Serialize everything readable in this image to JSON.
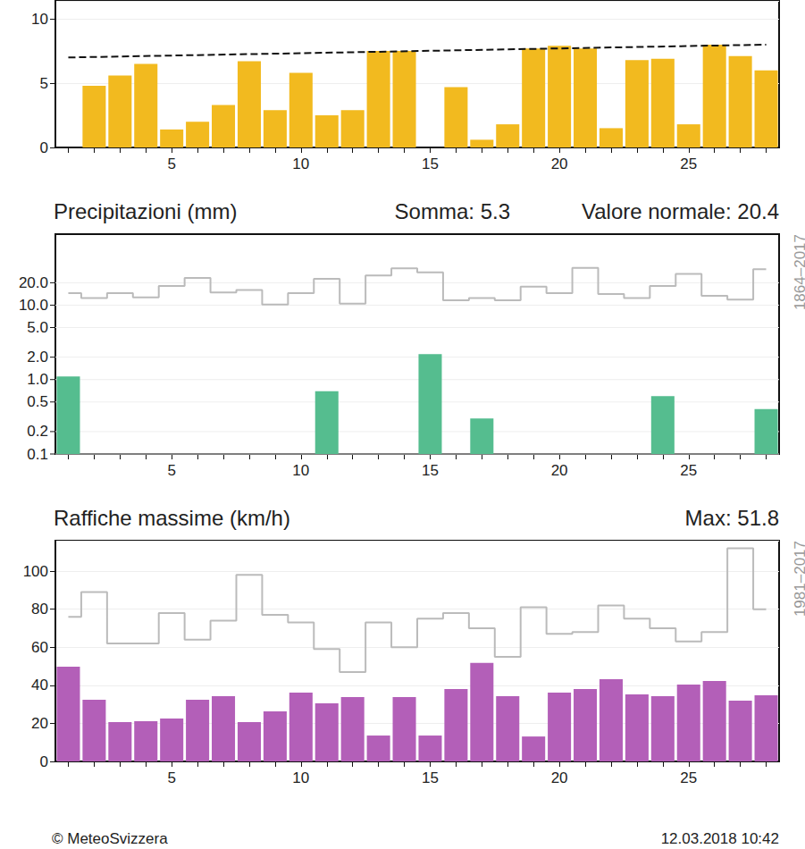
{
  "chart_data": [
    {
      "type": "bar",
      "x": [
        1,
        2,
        3,
        4,
        5,
        6,
        7,
        8,
        9,
        10,
        11,
        12,
        13,
        14,
        15,
        16,
        17,
        18,
        19,
        20,
        21,
        22,
        23,
        24,
        25,
        26,
        27,
        28
      ],
      "series": [
        {
          "type": "bar",
          "color": "#F2BA1F",
          "values": [
            0,
            4.8,
            5.6,
            6.5,
            1.4,
            2.0,
            3.3,
            6.7,
            2.9,
            5.8,
            2.5,
            2.9,
            7.5,
            7.5,
            0,
            4.7,
            0.6,
            1.8,
            7.7,
            7.9,
            7.7,
            1.5,
            6.8,
            6.9,
            1.8,
            8.0,
            7.1,
            6.0
          ]
        },
        {
          "type": "line",
          "color": "#111111",
          "line_style": "dashed",
          "x": [
            1,
            28
          ],
          "values": [
            7.0,
            8.0
          ]
        }
      ],
      "xlim": [
        0.5,
        28.5
      ],
      "xticks": [
        5,
        10,
        15,
        20,
        25
      ],
      "ylim": [
        0,
        11.4
      ],
      "yticks": [
        0,
        5,
        10
      ],
      "grid": true
    },
    {
      "type": "bar",
      "title": "Precipitazioni (mm)",
      "annotations": [
        "Somma: 5.3",
        "Valore normale: 20.4"
      ],
      "x": [
        1,
        2,
        3,
        4,
        5,
        6,
        7,
        8,
        9,
        10,
        11,
        12,
        13,
        14,
        15,
        16,
        17,
        18,
        19,
        20,
        21,
        22,
        23,
        24,
        25,
        26,
        27,
        28
      ],
      "series": [
        {
          "type": "bar",
          "color": "#55BD8F",
          "values": [
            1.1,
            null,
            null,
            null,
            null,
            null,
            null,
            null,
            null,
            null,
            0.7,
            null,
            null,
            null,
            2.2,
            null,
            0.3,
            null,
            null,
            null,
            null,
            null,
            null,
            0.6,
            null,
            null,
            null,
            0.4
          ]
        },
        {
          "type": "line",
          "name": "1864–2017",
          "color": "#BBBBBB",
          "line_style": "steps",
          "values": [
            14.5,
            12.5,
            14.5,
            12.7,
            18.1,
            23.2,
            14.8,
            16.0,
            10.2,
            14.5,
            22.6,
            10.5,
            25.1,
            31.3,
            27.6,
            11.6,
            12.5,
            11.6,
            17.7,
            14.5,
            31.7,
            14.1,
            12.5,
            18.1,
            26.3,
            13.4,
            11.9,
            30.5
          ]
        }
      ],
      "xlim": [
        0.5,
        28.5
      ],
      "xticks": [
        5,
        10,
        15,
        20,
        25
      ],
      "log": "y",
      "ylim": [
        0.1,
        90
      ],
      "yticks": [
        0.1,
        0.2,
        0.5,
        {
          "value": 1,
          "label": "1.0"
        },
        {
          "value": 2,
          "label": "2.0"
        },
        {
          "value": 5,
          "label": "5.0"
        },
        {
          "value": 10,
          "label": "10.0"
        },
        {
          "value": 20,
          "label": "20.0"
        }
      ],
      "grid": true
    },
    {
      "type": "bar",
      "title": "Raffiche massime (km/h)",
      "annotations": [
        "Max: 51.8"
      ],
      "x": [
        1,
        2,
        3,
        4,
        5,
        6,
        7,
        8,
        9,
        10,
        11,
        12,
        13,
        14,
        15,
        16,
        17,
        18,
        19,
        20,
        21,
        22,
        23,
        24,
        25,
        26,
        27,
        28
      ],
      "series": [
        {
          "type": "bar",
          "color": "#B35FB8",
          "values": [
            49.8,
            32.4,
            20.7,
            21.1,
            22.5,
            32.4,
            34.3,
            20.7,
            26.3,
            36.2,
            30.5,
            33.8,
            13.6,
            33.8,
            13.6,
            38.0,
            51.8,
            34.3,
            13.1,
            36.2,
            38.0,
            43.2,
            35.2,
            34.3,
            40.4,
            42.3,
            31.9,
            34.7
          ]
        },
        {
          "type": "line",
          "name": "1981–2017",
          "color": "#BBBBBB",
          "line_style": "steps",
          "values": [
            76,
            89,
            62,
            62,
            78,
            64,
            74,
            98,
            77,
            73,
            59,
            47,
            73,
            60,
            75,
            78,
            70,
            55,
            81,
            67,
            68,
            82,
            75,
            70,
            63,
            68,
            112,
            80
          ]
        }
      ],
      "xlim": [
        0.5,
        28.5
      ],
      "xticks": [
        5,
        10,
        15,
        20,
        25
      ],
      "ylim": [
        0,
        116
      ],
      "yticks": [
        0,
        20,
        40,
        60,
        80,
        100
      ],
      "grid": true
    }
  ],
  "footer": [
    "© MeteoSvizzera",
    "12.03.2018 10:42"
  ]
}
